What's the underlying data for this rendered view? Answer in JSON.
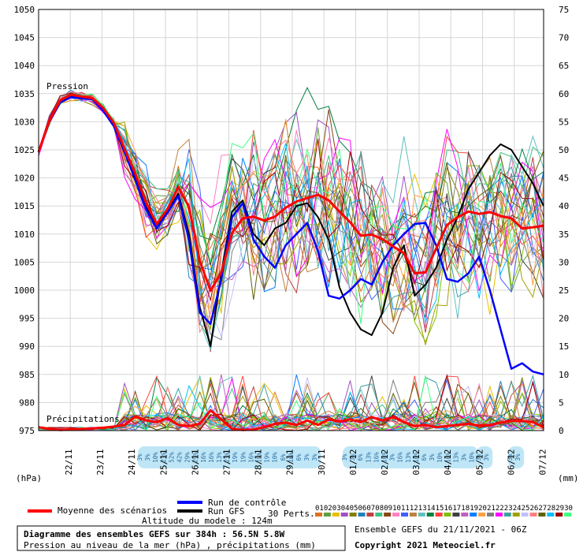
{
  "chart_data": {
    "type": "line",
    "title": "Diagramme des ensembles GEFS sur 384h : 56.5N 5.8W",
    "subtitle": "Pression au niveau de la mer (hPa) , précipitations (mm)",
    "run_info": "Ensemble GEFS du 21/11/2021 - 06Z",
    "copyright": "Copyright 2021 Meteociel.fr",
    "altitude": "Altitude du modele : 124m",
    "label_pressure": "Pression",
    "label_precip": "Précipitations",
    "left_unit": "(hPa)",
    "right_unit": "(mm)",
    "left_axis": {
      "min": 975,
      "max": 1050,
      "step": 5
    },
    "right_axis": {
      "min": 0,
      "max": 75,
      "step": 5
    },
    "x_labels": [
      "22/11",
      "23/11",
      "24/11",
      "25/11",
      "26/11",
      "27/11",
      "28/11",
      "29/11",
      "30/11",
      "01/12",
      "02/12",
      "03/12",
      "04/12",
      "05/12",
      "06/12",
      "07/12"
    ],
    "legend": {
      "mean": "Moyenne des scénarios",
      "control": "Run de contrôle",
      "gfs": "Run GFS",
      "perts": "30 Perts."
    },
    "pert_labels": [
      "01",
      "02",
      "03",
      "04",
      "05",
      "06",
      "07",
      "08",
      "09",
      "10",
      "11",
      "12",
      "13",
      "14",
      "15",
      "16",
      "17",
      "18",
      "19",
      "20",
      "21",
      "22",
      "23",
      "24",
      "25",
      "26",
      "27",
      "28",
      "29",
      "30"
    ],
    "pert_colors": [
      "#e07020",
      "#60a040",
      "#e8c000",
      "#a050c0",
      "#808000",
      "#2080c0",
      "#c04040",
      "#40c080",
      "#8b4513",
      "#ff80c0",
      "#4060ff",
      "#c08040",
      "#60c0c0",
      "#008040",
      "#ff4040",
      "#80c000",
      "#404040",
      "#c060c0",
      "#0080ff",
      "#ffa040",
      "#808080",
      "#ff00ff",
      "#40a0a0",
      "#a0a000",
      "#c0c0ff",
      "#ff8080",
      "#606000",
      "#00c0ff",
      "#a00000",
      "#40ff80"
    ],
    "snow": [
      {
        "x": 180,
        "vals": [
          "3%",
          "3%",
          "10%",
          "23%",
          "52%",
          "42%",
          "29%",
          "29%",
          "16%",
          "16%",
          "13%",
          "23%",
          "19%",
          "19%",
          "16%",
          "19%",
          "19%",
          "10%",
          "6%",
          "16%",
          "6%",
          "3%",
          "3%"
        ]
      },
      {
        "x": 440,
        "vals": [
          "3%",
          "3%",
          "6%",
          "13%",
          "16%",
          "10%",
          "3%",
          "16%",
          "13%",
          "10%",
          "6%",
          "3%",
          "10%",
          "10%",
          "13%",
          "3%",
          "10%"
        ]
      },
      {
        "x": 610,
        "vals": [
          "3%",
          "3%"
        ]
      },
      {
        "x": 650,
        "vals": [
          "3%",
          "3%"
        ]
      }
    ],
    "series": [
      {
        "name": "Moyenne des scénarios",
        "color": "#ff0000",
        "values": [
          1024.6,
          1030.2,
          1033.8,
          1034.8,
          1034.5,
          1034.2,
          1032.5,
          1029.8,
          1025.2,
          1020.8,
          1015.6,
          1011.8,
          1014.5,
          1018.4,
          1014.8,
          1005.2,
          999.9,
          1003.2,
          1010.2,
          1012.8,
          1013.1,
          1012.4,
          1013.1,
          1014.7,
          1015.8,
          1016.4,
          1017.0,
          1016.0,
          1014.0,
          1012.1,
          1009.7,
          1009.9,
          1009.1,
          1007.8,
          1006.6,
          1003.0,
          1003.2,
          1007.4,
          1011.6,
          1013.0,
          1014.0,
          1013.6,
          1013.9,
          1013.2,
          1012.8,
          1011.0,
          1011.2,
          1011.5
        ]
      },
      {
        "name": "Run de contrôle",
        "color": "#0000ff",
        "values": [
          1024.6,
          1030.0,
          1033.4,
          1034.4,
          1034.2,
          1034.0,
          1032.0,
          1029.2,
          1024.6,
          1019.6,
          1014.4,
          1011.0,
          1013.8,
          1016.8,
          1009.0,
          996.0,
          994.0,
          1002.0,
          1013.0,
          1015.5,
          1009.0,
          1006.0,
          1004.0,
          1008.0,
          1010.0,
          1012.0,
          1007.0,
          999.0,
          998.5,
          1000.0,
          1002.0,
          1001.0,
          1005.0,
          1008.0,
          1010.0,
          1011.8,
          1012.0,
          1008.0,
          1002.0,
          1001.5,
          1003.0,
          1006.0,
          1000.0,
          993.0,
          986.0,
          987.0,
          985.5,
          985.0
        ]
      },
      {
        "name": "Run GFS",
        "color": "#000000",
        "values": [
          1024.6,
          1030.1,
          1033.6,
          1034.6,
          1034.3,
          1034.1,
          1032.2,
          1029.5,
          1024.8,
          1020.0,
          1014.8,
          1011.6,
          1014.0,
          1017.2,
          1010.0,
          997.0,
          990.0,
          1003.0,
          1014.0,
          1016.0,
          1010.0,
          1008.0,
          1011.0,
          1012.0,
          1015.0,
          1015.5,
          1013.0,
          1009.0,
          1000.5,
          996.0,
          993.0,
          992.0,
          996.0,
          1004.0,
          1008.0,
          999.0,
          1001.0,
          1004.0,
          1009.0,
          1013.0,
          1018.0,
          1021.0,
          1024.0,
          1026.0,
          1025.0,
          1022.0,
          1019.0,
          1015.0
        ]
      },
      {
        "name": "Précipitations moyenne",
        "color": "#ff0000",
        "values": [
          0.6,
          0.3,
          0.1,
          0.2,
          0.3,
          0.4,
          0.5,
          0.7,
          1.0,
          2.5,
          1.8,
          1.5,
          2.2,
          1.0,
          0.8,
          1.2,
          3.6,
          2.0,
          0.3,
          0.1,
          0.2,
          0.6,
          1.2,
          1.4,
          1.0,
          1.8,
          1.0,
          2.0,
          1.6,
          2.0,
          1.5,
          2.4,
          1.8,
          2.4,
          1.5,
          0.8,
          1.0,
          0.6,
          0.8,
          1.0,
          1.2,
          0.9,
          1.0,
          1.4,
          1.7,
          1.7,
          1.5,
          0.6
        ]
      }
    ]
  }
}
